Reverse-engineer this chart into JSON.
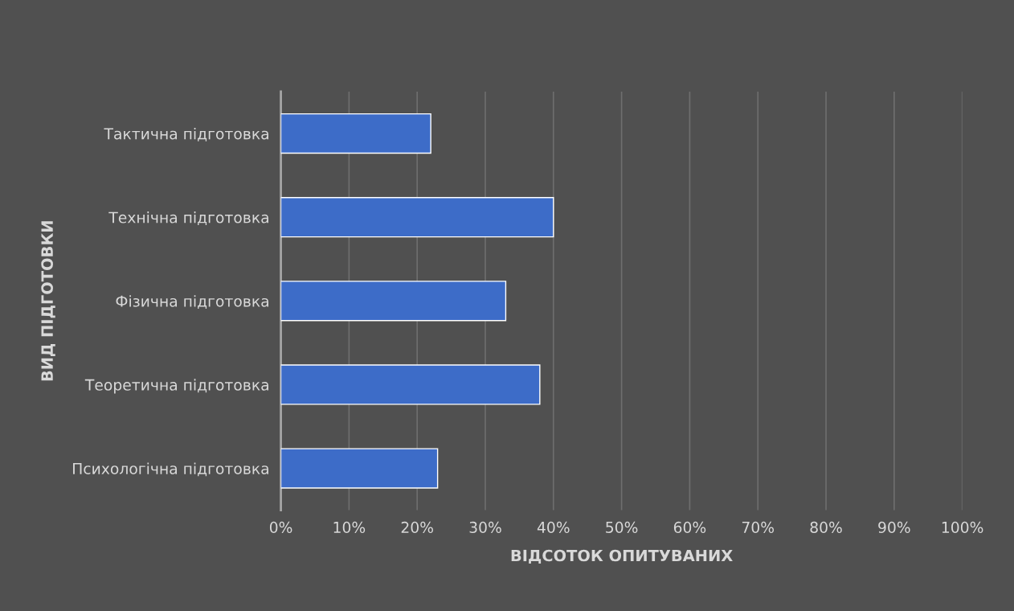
{
  "chart_data": {
    "type": "bar",
    "orientation": "horizontal",
    "xlabel": "ВІДСОТОК ОПИТУВАНИХ",
    "ylabel": "ВИД ПІДГОТОВКИ",
    "categories": [
      "Тактична підготовка",
      "Технічна підготовка",
      "Фізична підготовка",
      "Теоретична підготовка",
      "Психологічна підготовка"
    ],
    "values": [
      22,
      40,
      33,
      38,
      23
    ],
    "color": "#3d6cc8",
    "xlim": [
      0,
      100
    ],
    "xticks": [
      {
        "value": 0,
        "label": "0%"
      },
      {
        "value": 10,
        "label": "10%"
      },
      {
        "value": 20,
        "label": "20%"
      },
      {
        "value": 30,
        "label": "30%"
      },
      {
        "value": 40,
        "label": "40%"
      },
      {
        "value": 50,
        "label": "50%"
      },
      {
        "value": 60,
        "label": "60%"
      },
      {
        "value": 70,
        "label": "70%"
      },
      {
        "value": 80,
        "label": "80%"
      },
      {
        "value": 90,
        "label": "90%"
      },
      {
        "value": 100,
        "label": "100%"
      }
    ],
    "grid": "x",
    "legend": false
  }
}
